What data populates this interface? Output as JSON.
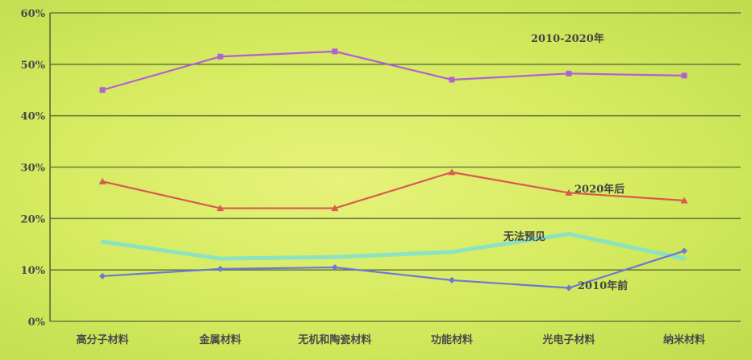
{
  "chart_data": {
    "type": "line",
    "categories": [
      "高分子材料",
      "金属材料",
      "无机和陶瓷材料",
      "功能材料",
      "光电子材料",
      "纳米材料"
    ],
    "yticks": [
      "0%",
      "10%",
      "20%",
      "30%",
      "40%",
      "50%",
      "60%"
    ],
    "ylim": [
      0,
      60
    ],
    "grid": true,
    "series": [
      {
        "name": "2010-2020年",
        "values": [
          45,
          51.5,
          52.5,
          47,
          48.2,
          47.8
        ],
        "color": "#b060d8",
        "marker": "square"
      },
      {
        "name": "2020年后",
        "values": [
          27.2,
          22,
          22,
          29,
          25,
          23.5
        ],
        "color": "#d85a50",
        "marker": "triangle"
      },
      {
        "name": "无法预见",
        "values": [
          15.5,
          12.2,
          12.5,
          13.5,
          17,
          12.2
        ],
        "color": "#7fe0d0",
        "marker": "none"
      },
      {
        "name": "2010年前",
        "values": [
          8.8,
          10.2,
          10.5,
          8,
          6.5,
          13.7
        ],
        "color": "#6a78d8",
        "marker": "diamond"
      }
    ]
  }
}
